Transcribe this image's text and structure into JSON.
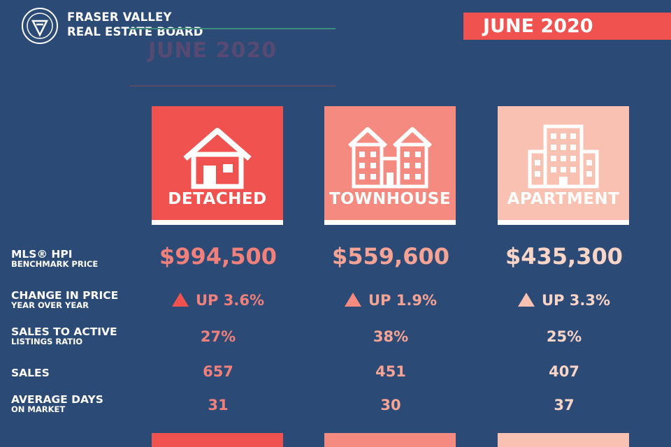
{
  "header": {
    "org_line1": "FRASER VALLEY",
    "org_line2": "REAL ESTATE BOARD",
    "date": "JUNE 2020"
  },
  "colors": {
    "background": "#2c4a76",
    "detached": "#f0524f",
    "townhouse": "#f58b80",
    "apartment": "#f9c1b2",
    "banner": "#f0524f"
  },
  "cards": [
    {
      "label": "DETACHED",
      "icon": "house-icon"
    },
    {
      "label": "TOWNHOUSE",
      "icon": "townhouse-icon"
    },
    {
      "label": "APARTMENT",
      "icon": "apartment-icon"
    }
  ],
  "rows": {
    "hpi": {
      "line1": "MLS® HPI",
      "line2": "BENCHMARK PRICE",
      "values": [
        "$994,500",
        "$559,600",
        "$435,300"
      ]
    },
    "change": {
      "line1": "CHANGE IN PRICE",
      "line2": "YEAR OVER YEAR",
      "values": [
        "UP 3.6%",
        "UP 1.9%",
        "UP 3.3%"
      ]
    },
    "ratio": {
      "line1": "SALES TO ACTIVE",
      "line2": "LISTINGS RATIO",
      "values": [
        "27%",
        "38%",
        "25%"
      ]
    },
    "sales": {
      "line1": "SALES",
      "values": [
        "657",
        "451",
        "407"
      ]
    },
    "dom": {
      "line1": "AVERAGE DAYS",
      "line2": "ON MARKET",
      "values": [
        "31",
        "30",
        "37"
      ]
    }
  }
}
